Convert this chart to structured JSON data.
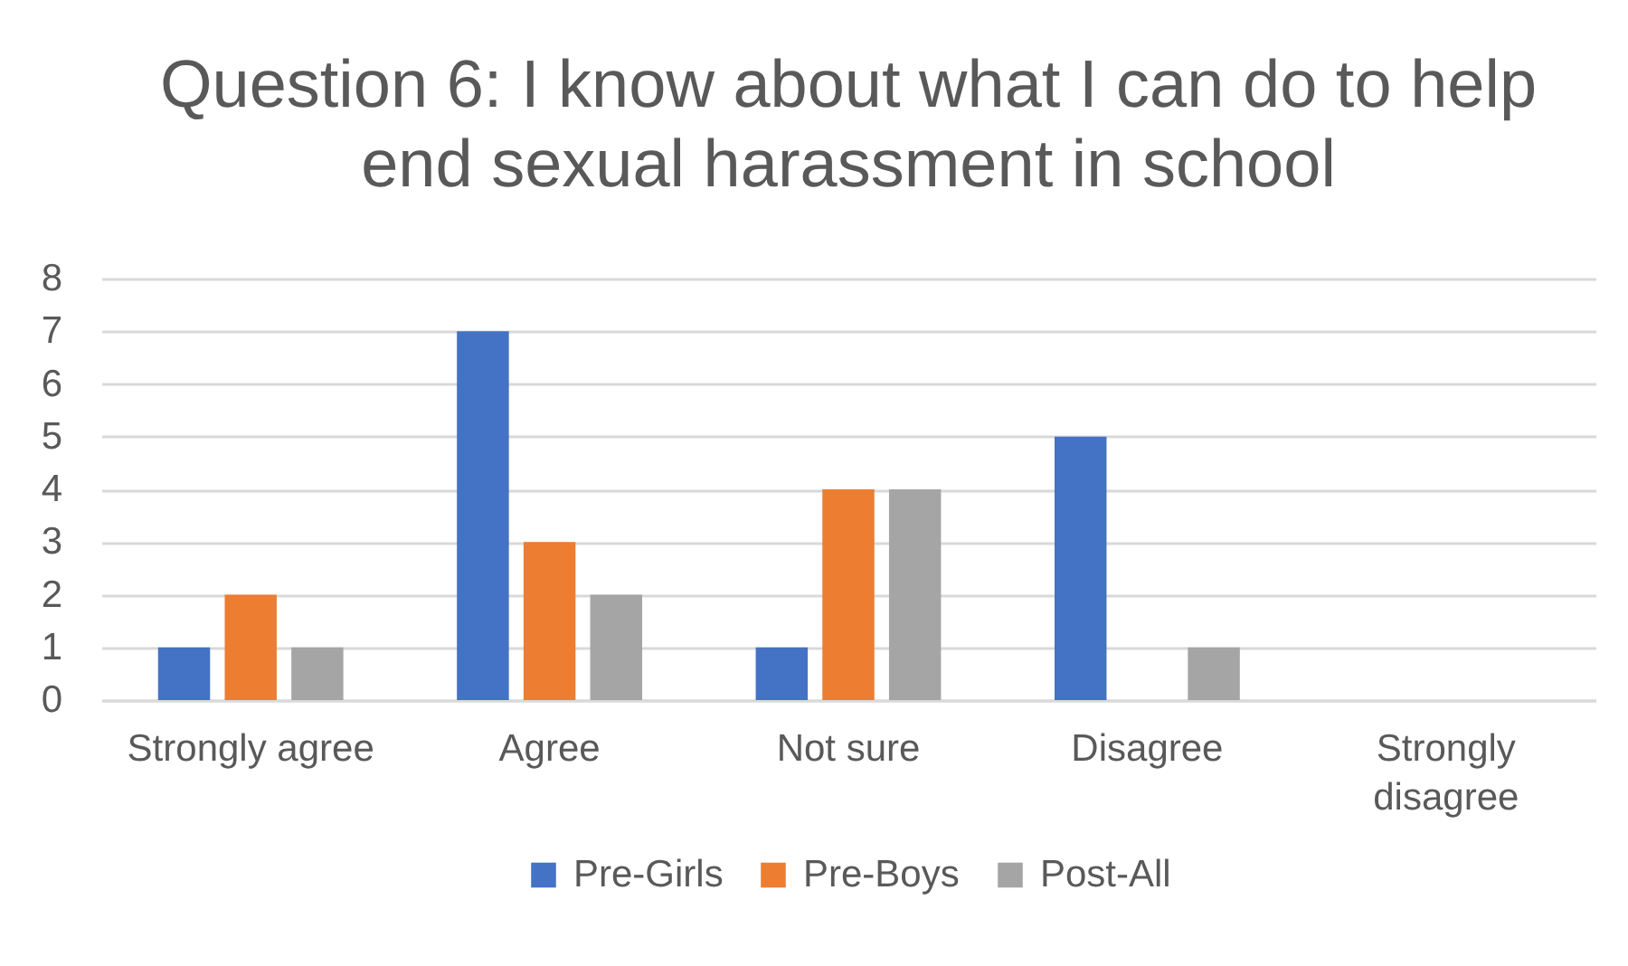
{
  "chart_data": {
    "type": "bar",
    "title": "Question 6: I know about what I can do to help end sexual harassment in school",
    "categories": [
      "Strongly agree",
      "Agree",
      "Not sure",
      "Disagree",
      "Strongly disagree"
    ],
    "series": [
      {
        "name": "Pre-Girls",
        "color": "#4472c4",
        "values": [
          1,
          7,
          1,
          5,
          0
        ]
      },
      {
        "name": "Pre-Boys",
        "color": "#ed7d31",
        "values": [
          2,
          3,
          4,
          0,
          0
        ]
      },
      {
        "name": "Post-All",
        "color": "#a5a5a5",
        "values": [
          1,
          2,
          4,
          1,
          0
        ]
      }
    ],
    "ylim": [
      0,
      8
    ],
    "yticks": [
      0,
      1,
      2,
      3,
      4,
      5,
      6,
      7,
      8
    ],
    "grid": "y",
    "legend": "bottom"
  }
}
